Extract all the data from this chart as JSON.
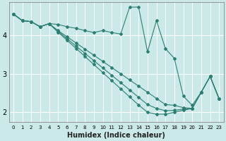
{
  "xlabel": "Humidex (Indice chaleur)",
  "ylabel": "",
  "bg_color": "#cce9e9",
  "line_color": "#2d7f72",
  "grid_color": "#ffffff",
  "xlim": [
    -0.5,
    23.5
  ],
  "ylim": [
    1.75,
    4.85
  ],
  "yticks": [
    2,
    3,
    4
  ],
  "xticks": [
    0,
    1,
    2,
    3,
    4,
    5,
    6,
    7,
    8,
    9,
    10,
    11,
    12,
    13,
    14,
    15,
    16,
    17,
    18,
    19,
    20,
    21,
    22,
    23
  ],
  "series": [
    [
      4.55,
      4.38,
      4.35,
      4.22,
      4.3,
      4.28,
      4.22,
      4.18,
      4.12,
      4.07,
      4.12,
      4.07,
      4.03,
      4.73,
      4.73,
      3.57,
      4.38,
      3.65,
      3.4,
      2.42,
      2.18,
      2.52,
      2.93,
      2.35
    ],
    [
      4.55,
      4.38,
      4.35,
      4.22,
      4.3,
      4.12,
      3.96,
      3.8,
      3.64,
      3.48,
      3.32,
      3.16,
      3.0,
      2.84,
      2.68,
      2.52,
      2.36,
      2.2,
      2.18,
      2.12,
      2.1,
      2.52,
      2.93,
      2.35
    ],
    [
      4.55,
      4.38,
      4.35,
      4.22,
      4.3,
      4.1,
      3.91,
      3.72,
      3.53,
      3.34,
      3.15,
      2.96,
      2.77,
      2.58,
      2.39,
      2.2,
      2.1,
      2.04,
      2.05,
      2.08,
      2.1,
      2.52,
      2.93,
      2.35
    ],
    [
      4.55,
      4.38,
      4.35,
      4.22,
      4.3,
      4.08,
      3.87,
      3.66,
      3.45,
      3.24,
      3.03,
      2.82,
      2.61,
      2.4,
      2.19,
      2.0,
      1.95,
      1.95,
      2.0,
      2.05,
      2.1,
      2.52,
      2.93,
      2.35
    ]
  ]
}
